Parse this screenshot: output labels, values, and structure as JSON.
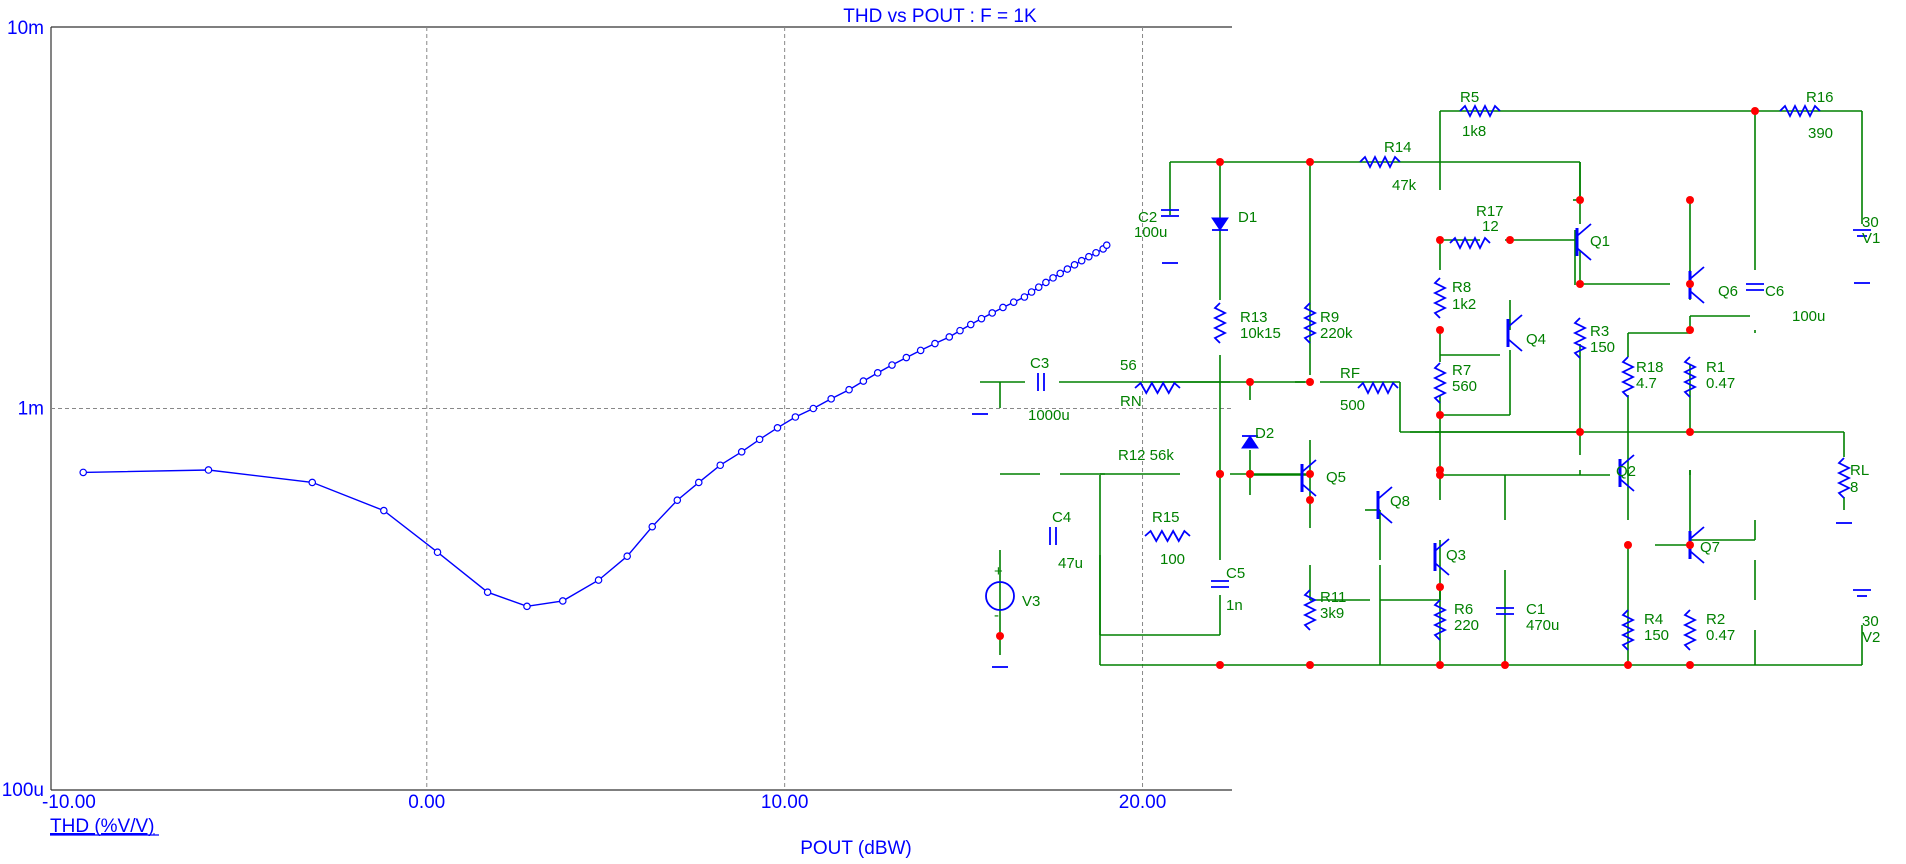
{
  "chart_data": {
    "type": "line",
    "title": "THD vs POUT : F = 1K",
    "xlabel": "POUT (dBW)",
    "ylabel": "THD (%V/V)",
    "xlim": [
      -10.5,
      22.5
    ],
    "ylim": [
      0.0001,
      0.01
    ],
    "yscale": "log",
    "grid": true,
    "x_ticks": [
      -10,
      0,
      10,
      20
    ],
    "x_tick_labels": [
      "-10.00",
      "0.00",
      "10.00",
      "20.00"
    ],
    "y_ticks": [
      0.0001,
      0.001,
      0.01
    ],
    "y_tick_labels": [
      "100u",
      "1m",
      "10m"
    ],
    "series": [
      {
        "color": "#0000ff",
        "points": [
          [
            -9.6,
            0.00068
          ],
          [
            -6.1,
            0.00069
          ],
          [
            -3.2,
            0.00064
          ],
          [
            -1.2,
            0.00054
          ],
          [
            0.3,
            0.00042
          ],
          [
            1.7,
            0.00033
          ],
          [
            2.8,
            0.000303
          ],
          [
            3.8,
            0.000313
          ],
          [
            4.8,
            0.000355
          ],
          [
            5.6,
            0.00041
          ],
          [
            6.3,
            0.00049
          ],
          [
            7.0,
            0.000575
          ],
          [
            7.6,
            0.00064
          ],
          [
            8.2,
            0.00071
          ],
          [
            8.8,
            0.00077
          ],
          [
            9.3,
            0.00083
          ],
          [
            9.8,
            0.00089
          ],
          [
            10.3,
            0.00095
          ],
          [
            10.8,
            0.001
          ],
          [
            11.3,
            0.00106
          ],
          [
            11.8,
            0.00112
          ],
          [
            12.2,
            0.00118
          ],
          [
            12.6,
            0.00124
          ],
          [
            13.0,
            0.0013
          ],
          [
            13.4,
            0.00136
          ],
          [
            13.8,
            0.00142
          ],
          [
            14.2,
            0.00148
          ],
          [
            14.6,
            0.00154
          ],
          [
            14.9,
            0.0016
          ],
          [
            15.2,
            0.00166
          ],
          [
            15.5,
            0.00172
          ],
          [
            15.8,
            0.00178
          ],
          [
            16.1,
            0.00184
          ],
          [
            16.4,
            0.0019
          ],
          [
            16.7,
            0.00196
          ],
          [
            16.9,
            0.00202
          ],
          [
            17.1,
            0.00208
          ],
          [
            17.3,
            0.00214
          ],
          [
            17.5,
            0.0022
          ],
          [
            17.7,
            0.00226
          ],
          [
            17.9,
            0.00232
          ],
          [
            18.1,
            0.00238
          ],
          [
            18.3,
            0.00244
          ],
          [
            18.5,
            0.0025
          ],
          [
            18.7,
            0.00256
          ],
          [
            18.9,
            0.00262
          ],
          [
            19.0,
            0.00268
          ]
        ]
      }
    ]
  },
  "schematic": {
    "labels": [
      "R5",
      "1k8",
      "R16",
      "390",
      "R14",
      "47k",
      "C2",
      "100u",
      "D1",
      "R17",
      "12",
      "Q1",
      "30",
      "V1",
      "R8",
      "1k2",
      "Q6",
      "C6",
      "100u",
      "Q4",
      "R13",
      "10k15",
      "R9",
      "220k",
      "R3",
      "150",
      "R18",
      "4.7",
      "R1",
      "0.47",
      "C3",
      "56",
      "R7",
      "560",
      "RF",
      "RN",
      "1000u",
      "500",
      "D2",
      "RL",
      "8",
      "R12 56k",
      "Q5",
      "Q2",
      "Q8",
      "C4",
      "R15",
      "47u",
      "100",
      "Q3",
      "Q7",
      "C5",
      "V3",
      "1n",
      "R11",
      "3k9",
      "R6",
      "220",
      "C1",
      "470u",
      "R4",
      "150",
      "R2",
      "0.47",
      "30",
      "V2",
      "+",
      "-"
    ]
  }
}
